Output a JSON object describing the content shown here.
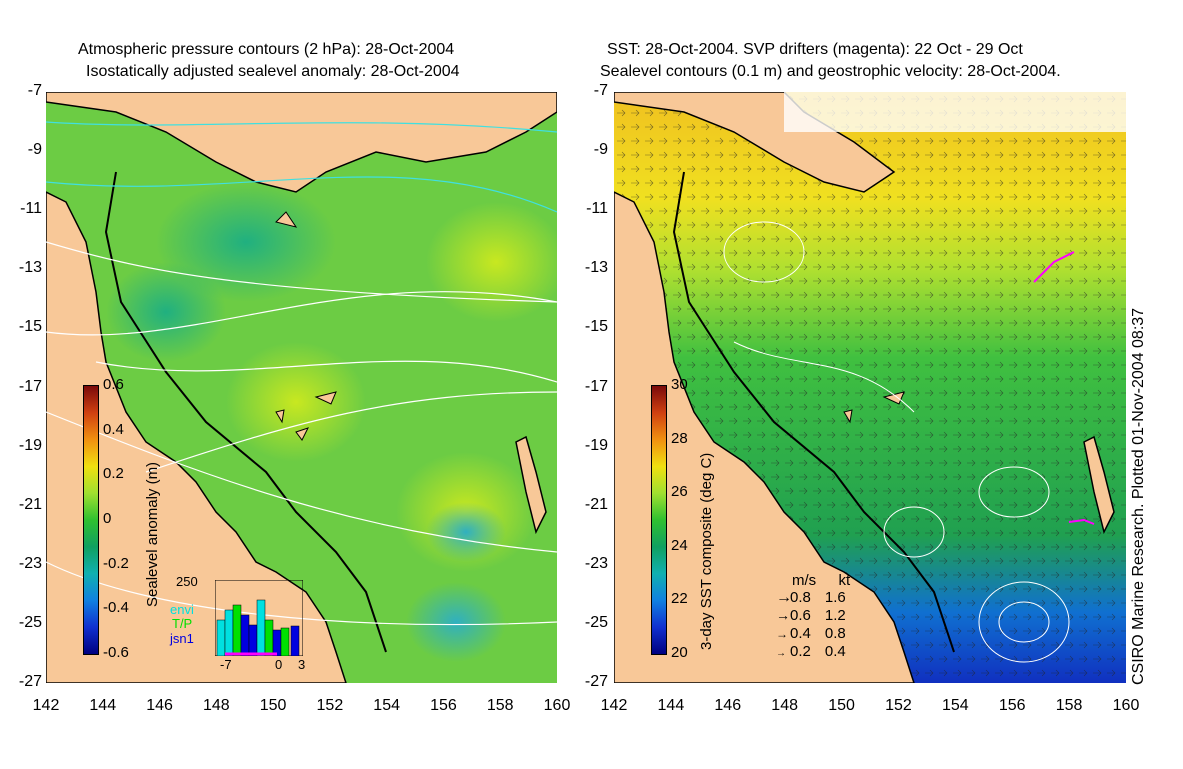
{
  "left_panel": {
    "title_line1": "Atmospheric pressure contours (2 hPa): 28-Oct-2004",
    "title_line2": "Isostatically adjusted sealevel anomaly: 28-Oct-2004",
    "colorbar_label": "Sealevel anomaly (m)",
    "colorbar_ticks": [
      "0.6",
      "0.4",
      "0.2",
      "0",
      "-0.2",
      "-0.4",
      "-0.6"
    ],
    "colorbar_colors": [
      "#7a0a0a",
      "#d04010",
      "#f09010",
      "#f0e010",
      "#a0e030",
      "#30c030",
      "#10a060",
      "#10b0b0",
      "#1080e0",
      "#1030d0",
      "#000080"
    ],
    "inset": {
      "ytick": "250",
      "xticks": [
        "-7",
        "0",
        "3"
      ],
      "legend": [
        {
          "label": "envi",
          "color": "#00e0e0"
        },
        {
          "label": "T/P",
          "color": "#00e000"
        },
        {
          "label": "jsn1",
          "color": "#0000e0"
        }
      ]
    }
  },
  "right_panel": {
    "title_line1": "SST: 28-Oct-2004. SVP drifters (magenta): 22 Oct - 29 Oct",
    "title_line2": "Sealevel contours (0.1 m) and geostrophic velocity: 28-Oct-2004.",
    "colorbar_label": "3-day SST composite (deg C)",
    "colorbar_ticks": [
      "30",
      "28",
      "26",
      "24",
      "22",
      "20"
    ],
    "colorbar_colors": [
      "#7a0a0a",
      "#d04010",
      "#f09010",
      "#f0e010",
      "#a0e030",
      "#30c030",
      "#10a060",
      "#10b0b0",
      "#1080e0",
      "#1030d0",
      "#000080"
    ],
    "velocity_legend": {
      "header_ms": "m/s",
      "header_kt": "kt",
      "rows": [
        {
          "ms": "0.8",
          "kt": "1.6"
        },
        {
          "ms": "0.6",
          "kt": "1.2"
        },
        {
          "ms": "0.4",
          "kt": "0.8"
        },
        {
          "ms": "0.2",
          "kt": "0.4"
        }
      ]
    }
  },
  "y_ticks": [
    "-7",
    "-9",
    "-11",
    "-13",
    "-15",
    "-17",
    "-19",
    "-21",
    "-23",
    "-25",
    "-27"
  ],
  "x_ticks": [
    "142",
    "144",
    "146",
    "148",
    "150",
    "152",
    "154",
    "156",
    "158",
    "160"
  ],
  "credit": "CSIRO Marine Research. Plotted 01-Nov-2004 08:37",
  "colors": {
    "land": "#f8c898",
    "ocean_left": "#60c840",
    "ocean_right": "#30b040",
    "coast": "#000000",
    "pressure_contour": "#ffffff",
    "pressure_contour_alt": "#40e0e0"
  }
}
